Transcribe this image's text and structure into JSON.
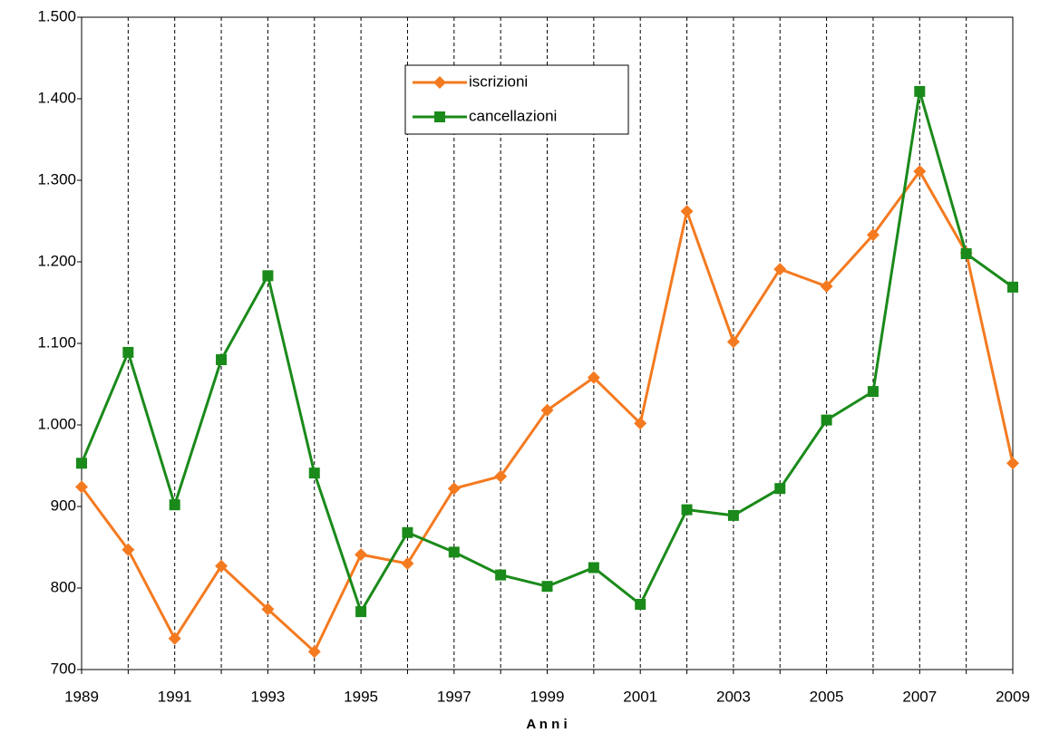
{
  "chart_data": {
    "type": "line",
    "x_label": "A n n i",
    "categories": [
      "1989",
      null,
      "1991",
      null,
      "1993",
      null,
      "1995",
      null,
      "1997",
      null,
      "1999",
      null,
      "2001",
      null,
      "2003",
      null,
      "2005",
      null,
      "2007",
      null,
      "2009"
    ],
    "series": [
      {
        "name": "iscrizioni",
        "color": "#f47a20",
        "marker": "diamond",
        "values": [
          924,
          847,
          738,
          827,
          774,
          722,
          841,
          830,
          922,
          937,
          1018,
          1058,
          1002,
          1262,
          1102,
          1191,
          1170,
          1233,
          1311,
          1211,
          953
        ]
      },
      {
        "name": "cancellazioni",
        "color": "#1a8a1a",
        "marker": "square",
        "values": [
          953,
          1089,
          902,
          1080,
          1183,
          941,
          771,
          868,
          844,
          816,
          802,
          825,
          780,
          896,
          889,
          922,
          1006,
          1041,
          1409,
          1210,
          1169
        ]
      }
    ],
    "ylim": [
      700,
      1500
    ],
    "yticks": [
      700,
      800,
      900,
      {
        "value": 1000,
        "label": "1.000"
      },
      {
        "value": 1100,
        "label": "1.100"
      },
      {
        "value": 1200,
        "label": "1.200"
      },
      {
        "value": 1300,
        "label": "1.300"
      },
      {
        "value": 1400,
        "label": "1.400"
      },
      {
        "value": 1500,
        "label": "1.500"
      }
    ],
    "grid": "x-dashed",
    "legend": "top-center"
  }
}
